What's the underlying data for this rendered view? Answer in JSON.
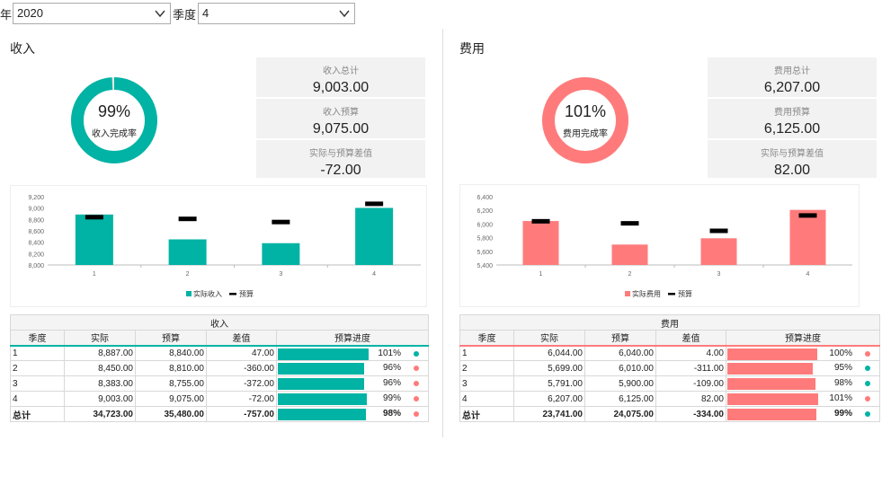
{
  "filters": {
    "year_label": "年",
    "year_value": "2020",
    "quarter_label": "季度",
    "quarter_value": "4"
  },
  "colors": {
    "income": "#00b3a4",
    "expense": "#ff7b7b",
    "target": "#000000",
    "good": "#00b3a4",
    "bad": "#ff7b7b"
  },
  "income": {
    "title": "收入",
    "donut": {
      "pct_text": "99%",
      "fraction": 0.99,
      "label": "收入完成率"
    },
    "kpis": [
      {
        "label": "收入总计",
        "value": "9,003.00"
      },
      {
        "label": "收入预算",
        "value": "9,075.00"
      },
      {
        "label": "实际与预算差值",
        "value": "-72.00"
      }
    ],
    "chart_data": {
      "type": "bar",
      "categories": [
        "1",
        "2",
        "3",
        "4"
      ],
      "series": [
        {
          "name": "实际收入",
          "values": [
            8887,
            8450,
            8383,
            9003
          ]
        },
        {
          "name": "预算",
          "values": [
            8840,
            8810,
            8755,
            9075
          ]
        }
      ],
      "yticks": [
        "8,000",
        "8,200",
        "8,400",
        "8,600",
        "8,800",
        "9,000",
        "9,200"
      ],
      "ylim": [
        8000,
        9200
      ],
      "legend": "bottom"
    },
    "table": {
      "group_header": "收入",
      "headers": [
        "季度",
        "实际",
        "预算",
        "差值",
        "预算进度"
      ],
      "rows": [
        {
          "q": "1",
          "actual": "8,887.00",
          "budget": "8,840.00",
          "diff": "47.00",
          "pct": "101%",
          "fraction": 1.01,
          "status": "good"
        },
        {
          "q": "2",
          "actual": "8,450.00",
          "budget": "8,810.00",
          "diff": "-360.00",
          "pct": "96%",
          "fraction": 0.96,
          "status": "bad"
        },
        {
          "q": "3",
          "actual": "8,383.00",
          "budget": "8,755.00",
          "diff": "-372.00",
          "pct": "96%",
          "fraction": 0.96,
          "status": "bad"
        },
        {
          "q": "4",
          "actual": "9,003.00",
          "budget": "9,075.00",
          "diff": "-72.00",
          "pct": "99%",
          "fraction": 0.99,
          "status": "bad"
        }
      ],
      "total": {
        "q": "总计",
        "actual": "34,723.00",
        "budget": "35,480.00",
        "diff": "-757.00",
        "pct": "98%",
        "fraction": 0.98,
        "status": "bad"
      }
    }
  },
  "expense": {
    "title": "费用",
    "donut": {
      "pct_text": "101%",
      "fraction": 1.01,
      "label": "费用完成率"
    },
    "kpis": [
      {
        "label": "费用总计",
        "value": "6,207.00"
      },
      {
        "label": "费用预算",
        "value": "6,125.00"
      },
      {
        "label": "实际与预算差值",
        "value": "82.00"
      }
    ],
    "chart_data": {
      "type": "bar",
      "categories": [
        "1",
        "2",
        "3",
        "4"
      ],
      "series": [
        {
          "name": "实际费用",
          "values": [
            6044,
            5699,
            5791,
            6207
          ]
        },
        {
          "name": "预算",
          "values": [
            6040,
            6010,
            5900,
            6125
          ]
        }
      ],
      "yticks": [
        "5,400",
        "5,600",
        "5,800",
        "6,000",
        "6,200",
        "6,400"
      ],
      "ylim": [
        5400,
        6400
      ],
      "legend": "bottom"
    },
    "table": {
      "group_header": "费用",
      "headers": [
        "季度",
        "实际",
        "预算",
        "差值",
        "预算进度"
      ],
      "rows": [
        {
          "q": "1",
          "actual": "6,044.00",
          "budget": "6,040.00",
          "diff": "4.00",
          "pct": "100%",
          "fraction": 1.0,
          "status": "bad"
        },
        {
          "q": "2",
          "actual": "5,699.00",
          "budget": "6,010.00",
          "diff": "-311.00",
          "pct": "95%",
          "fraction": 0.95,
          "status": "good"
        },
        {
          "q": "3",
          "actual": "5,791.00",
          "budget": "5,900.00",
          "diff": "-109.00",
          "pct": "98%",
          "fraction": 0.98,
          "status": "good"
        },
        {
          "q": "4",
          "actual": "6,207.00",
          "budget": "6,125.00",
          "diff": "82.00",
          "pct": "101%",
          "fraction": 1.01,
          "status": "bad"
        }
      ],
      "total": {
        "q": "总计",
        "actual": "23,741.00",
        "budget": "24,075.00",
        "diff": "-334.00",
        "pct": "99%",
        "fraction": 0.99,
        "status": "good"
      }
    }
  }
}
